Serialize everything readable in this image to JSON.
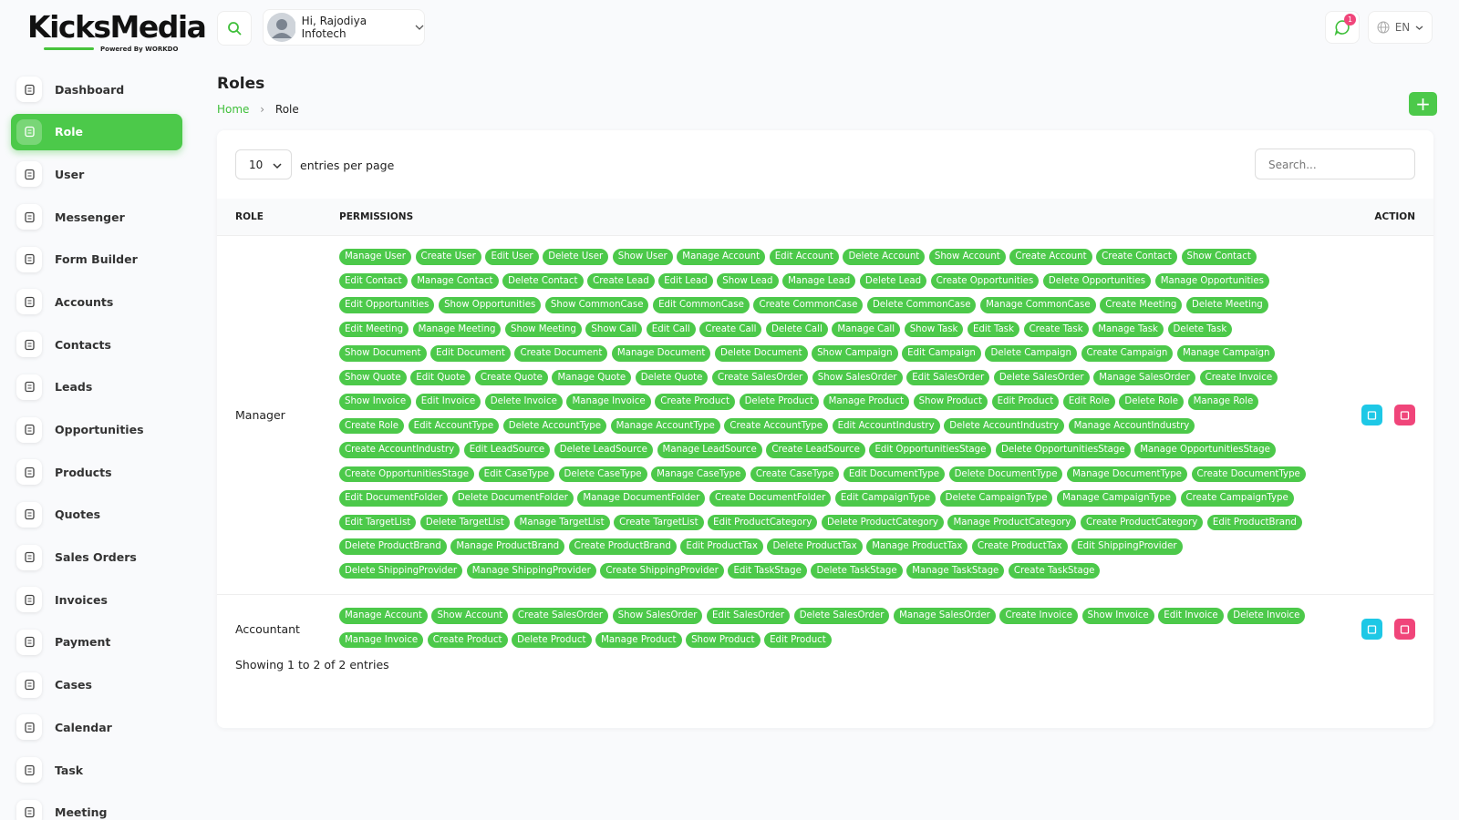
{
  "brand": {
    "name": "KicksMedia",
    "powered_by": "Powered By",
    "partner": "WORKDO"
  },
  "header": {
    "greeting": "Hi, Rajodiya Infotech",
    "notifications": 1,
    "language": "EN"
  },
  "sidebar": {
    "items": [
      {
        "label": "Dashboard"
      },
      {
        "label": "Role",
        "active": true
      },
      {
        "label": "User"
      },
      {
        "label": "Messenger"
      },
      {
        "label": "Form Builder"
      },
      {
        "label": "Accounts"
      },
      {
        "label": "Contacts"
      },
      {
        "label": "Leads"
      },
      {
        "label": "Opportunities"
      },
      {
        "label": "Products"
      },
      {
        "label": "Quotes"
      },
      {
        "label": "Sales Orders"
      },
      {
        "label": "Invoices"
      },
      {
        "label": "Payment"
      },
      {
        "label": "Cases"
      },
      {
        "label": "Calendar"
      },
      {
        "label": "Task"
      },
      {
        "label": "Meeting"
      }
    ]
  },
  "page": {
    "title": "Roles",
    "breadcrumb": [
      "Home",
      "Role"
    ]
  },
  "table": {
    "page_size": 10,
    "page_size_label": "entries per page",
    "search_placeholder": "Search...",
    "columns": [
      "ROLE",
      "PERMISSIONS",
      "ACTION"
    ],
    "rows": [
      {
        "role": "Manager",
        "permissions": [
          "Manage User",
          "Create User",
          "Edit User",
          "Delete User",
          "Show User",
          "Manage Account",
          "Edit Account",
          "Delete Account",
          "Show Account",
          "Create Account",
          "Create Contact",
          "Show Contact",
          "Edit Contact",
          "Manage Contact",
          "Delete Contact",
          "Create Lead",
          "Edit Lead",
          "Show Lead",
          "Manage Lead",
          "Delete Lead",
          "Create Opportunities",
          "Delete Opportunities",
          "Manage Opportunities",
          "Edit Opportunities",
          "Show Opportunities",
          "Show CommonCase",
          "Edit CommonCase",
          "Create CommonCase",
          "Delete CommonCase",
          "Manage CommonCase",
          "Create Meeting",
          "Delete Meeting",
          "Edit Meeting",
          "Manage Meeting",
          "Show Meeting",
          "Show Call",
          "Edit Call",
          "Create Call",
          "Delete Call",
          "Manage Call",
          "Show Task",
          "Edit Task",
          "Create Task",
          "Manage Task",
          "Delete Task",
          "Show Document",
          "Edit Document",
          "Create Document",
          "Manage Document",
          "Delete Document",
          "Show Campaign",
          "Edit Campaign",
          "Delete Campaign",
          "Create Campaign",
          "Manage Campaign",
          "Show Quote",
          "Edit Quote",
          "Create Quote",
          "Manage Quote",
          "Delete Quote",
          "Create SalesOrder",
          "Show SalesOrder",
          "Edit SalesOrder",
          "Delete SalesOrder",
          "Manage SalesOrder",
          "Create Invoice",
          "Show Invoice",
          "Edit Invoice",
          "Delete Invoice",
          "Manage Invoice",
          "Create Product",
          "Delete Product",
          "Manage Product",
          "Show Product",
          "Edit Product",
          "Edit Role",
          "Delete Role",
          "Manage Role",
          "Create Role",
          "Edit AccountType",
          "Delete AccountType",
          "Manage AccountType",
          "Create AccountType",
          "Edit AccountIndustry",
          "Delete AccountIndustry",
          "Manage AccountIndustry",
          "Create AccountIndustry",
          "Edit LeadSource",
          "Delete LeadSource",
          "Manage LeadSource",
          "Create LeadSource",
          "Edit OpportunitiesStage",
          "Delete OpportunitiesStage",
          "Manage OpportunitiesStage",
          "Create OpportunitiesStage",
          "Edit CaseType",
          "Delete CaseType",
          "Manage CaseType",
          "Create CaseType",
          "Edit DocumentType",
          "Delete DocumentType",
          "Manage DocumentType",
          "Create DocumentType",
          "Edit DocumentFolder",
          "Delete DocumentFolder",
          "Manage DocumentFolder",
          "Create DocumentFolder",
          "Edit CampaignType",
          "Delete CampaignType",
          "Manage CampaignType",
          "Create CampaignType",
          "Edit TargetList",
          "Delete TargetList",
          "Manage TargetList",
          "Create TargetList",
          "Edit ProductCategory",
          "Delete ProductCategory",
          "Manage ProductCategory",
          "Create ProductCategory",
          "Edit ProductBrand",
          "Delete ProductBrand",
          "Manage ProductBrand",
          "Create ProductBrand",
          "Edit ProductTax",
          "Delete ProductTax",
          "Manage ProductTax",
          "Create ProductTax",
          "Edit ShippingProvider",
          "Delete ShippingProvider",
          "Manage ShippingProvider",
          "Create ShippingProvider",
          "Edit TaskStage",
          "Delete TaskStage",
          "Manage TaskStage",
          "Create TaskStage"
        ]
      },
      {
        "role": "Accountant",
        "permissions": [
          "Manage Account",
          "Show Account",
          "Create SalesOrder",
          "Show SalesOrder",
          "Edit SalesOrder",
          "Delete SalesOrder",
          "Manage SalesOrder",
          "Create Invoice",
          "Show Invoice",
          "Edit Invoice",
          "Delete Invoice",
          "Manage Invoice",
          "Create Product",
          "Delete Product",
          "Manage Product",
          "Show Product",
          "Edit Product"
        ]
      }
    ],
    "summary": "Showing 1 to 2 of 2 entries"
  }
}
